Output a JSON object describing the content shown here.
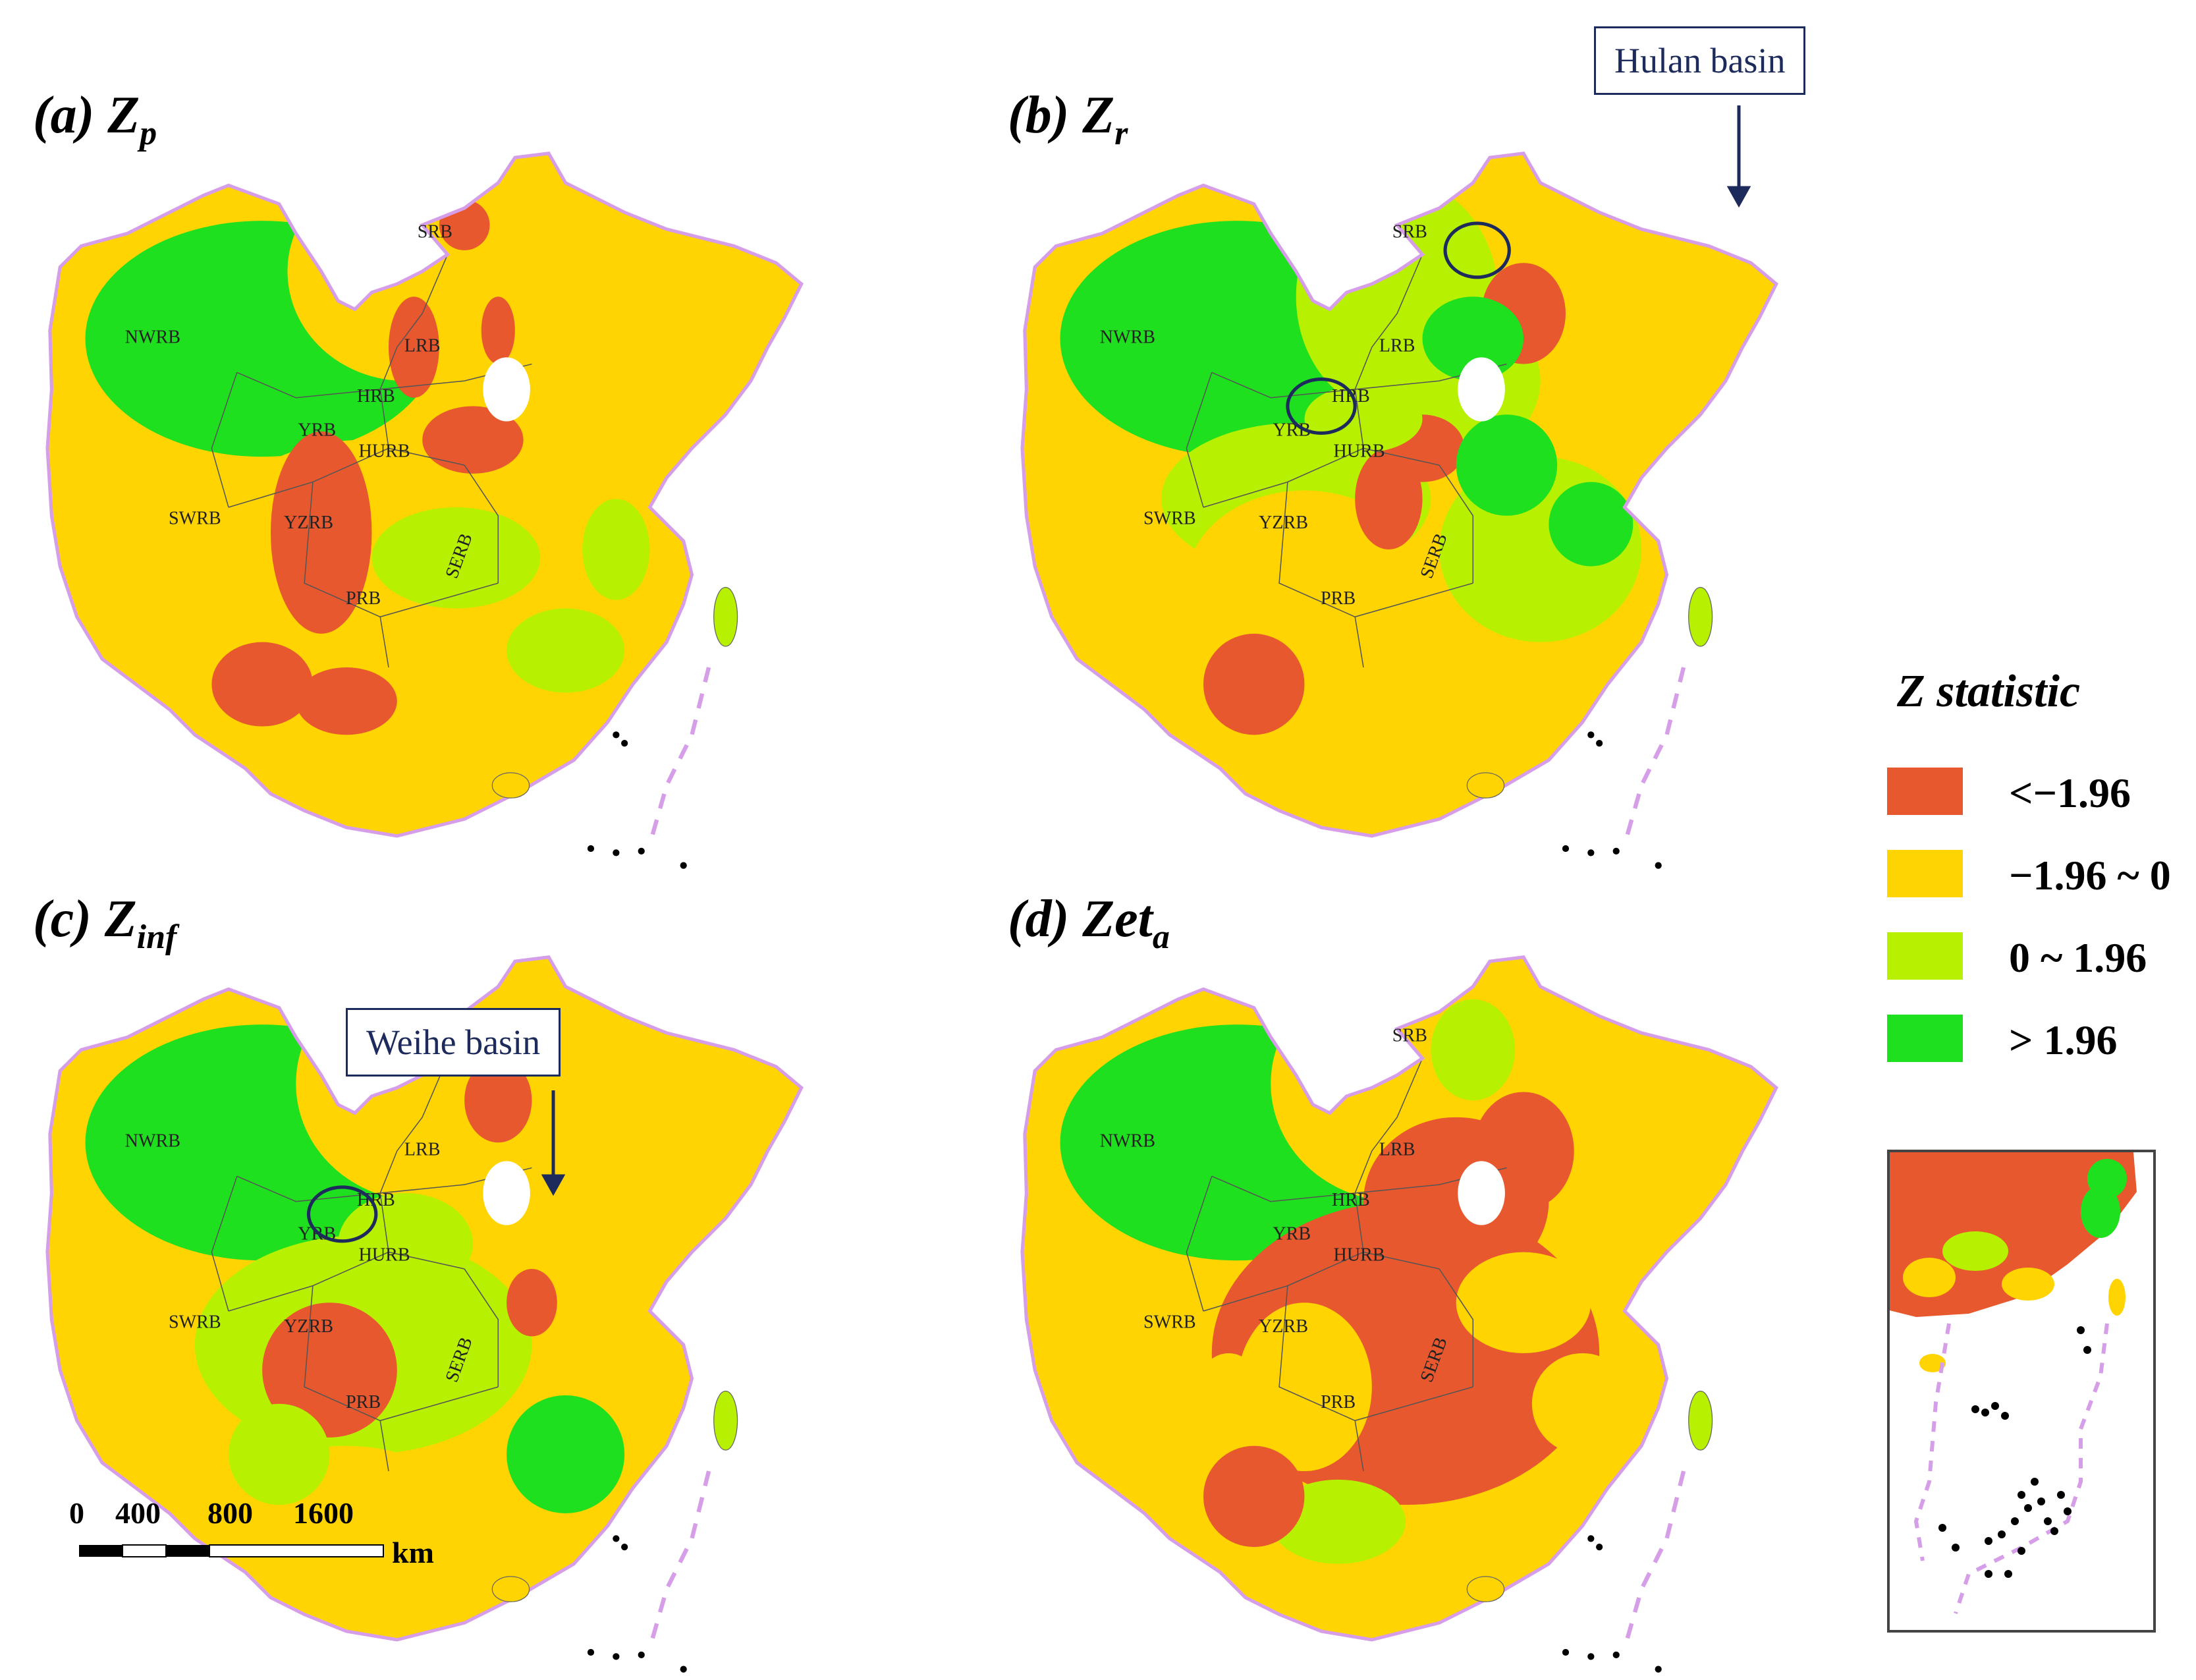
{
  "panels": [
    {
      "id": "a",
      "prefix": "(",
      "letter": "a",
      "close": ")",
      "var_main": "Z",
      "var_sub": "p"
    },
    {
      "id": "b",
      "prefix": "(",
      "letter": "b",
      "close": ")",
      "var_main": "Z",
      "var_sub": "r"
    },
    {
      "id": "c",
      "prefix": "(",
      "letter": "c",
      "close": ")",
      "var_main": "Z",
      "var_sub": "inf"
    },
    {
      "id": "d",
      "prefix": "(",
      "letter": "d",
      "close": ")",
      "var_main": "Zet",
      "var_sub": "a"
    }
  ],
  "basin_labels": [
    "SRB",
    "LRB",
    "NWRB",
    "HRB",
    "YRB",
    "HURB",
    "SWRB",
    "YZRB",
    "SERB",
    "PRB"
  ],
  "callouts": {
    "hulan": "Hulan basin",
    "weihe": "Weihe basin"
  },
  "legend": {
    "title": "Z statistic",
    "items": [
      {
        "label": "<−1.96",
        "color": "#e8582e"
      },
      {
        "label": "−1.96 ~ 0",
        "color": "#ffd400"
      },
      {
        "label": "0 ~ 1.96",
        "color": "#b7f000"
      },
      {
        "label": "> 1.96",
        "color": "#1fe01f"
      }
    ]
  },
  "scalebar": {
    "ticks": [
      "0",
      "400",
      "800",
      "1600"
    ],
    "unit": "km"
  },
  "colors": {
    "border": "#d69ee8",
    "circle": "#1d2b5c",
    "basin_line": "#555555"
  }
}
